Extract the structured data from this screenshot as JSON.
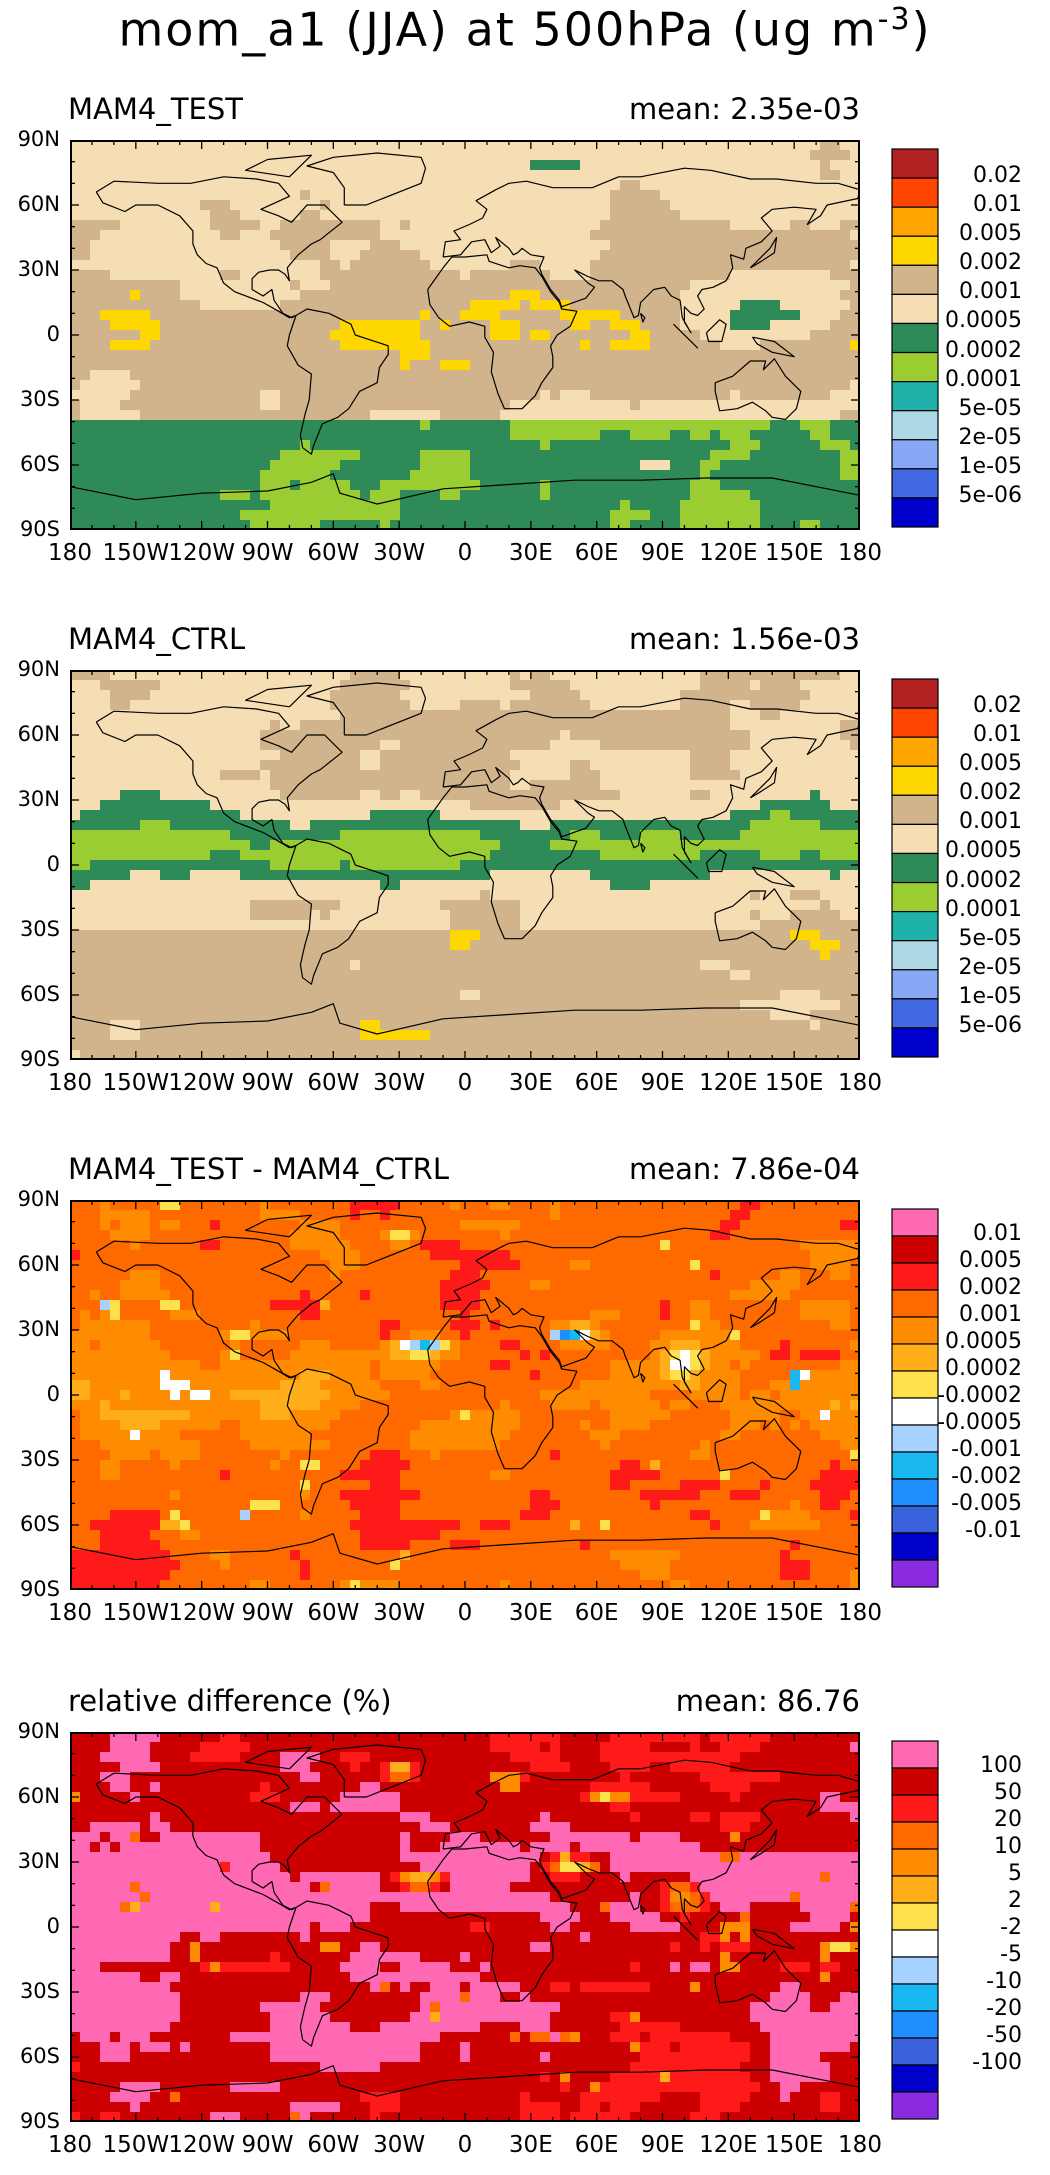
{
  "title": {
    "text": "mom_a1 (JJA) at 500hPa (ug m",
    "exponent": "-3",
    "close": ")"
  },
  "lat_labels": [
    "90N",
    "60N",
    "30N",
    "0",
    "30S",
    "60S",
    "90S"
  ],
  "lon_labels": [
    "180",
    "150W",
    "120W",
    "90W",
    "60W",
    "30W",
    "0",
    "30E",
    "60E",
    "90E",
    "120E",
    "150E",
    "180"
  ],
  "panels": [
    {
      "label": "MAM4_TEST",
      "mean": "mean: 2.35e-03",
      "kind": "abs_test",
      "colorbar": {
        "colors": [
          "#b22222",
          "#ff4500",
          "#ffa500",
          "#ffd700",
          "#d2b48c",
          "#f5deb3",
          "#2e8b57",
          "#9acd32",
          "#20b2aa",
          "#add8e6",
          "#87a9f5",
          "#4169e1",
          "#0000cd"
        ],
        "labels": [
          "0.02",
          "0.01",
          "0.005",
          "0.002",
          "0.001",
          "0.0005",
          "0.0002",
          "0.0001",
          "5e-05",
          "2e-05",
          "1e-05",
          "5e-06"
        ]
      }
    },
    {
      "label": "MAM4_CTRL",
      "mean": "mean: 1.56e-03",
      "kind": "abs_ctrl",
      "colorbar": {
        "colors": [
          "#b22222",
          "#ff4500",
          "#ffa500",
          "#ffd700",
          "#d2b48c",
          "#f5deb3",
          "#2e8b57",
          "#9acd32",
          "#20b2aa",
          "#add8e6",
          "#87a9f5",
          "#4169e1",
          "#0000cd"
        ],
        "labels": [
          "0.02",
          "0.01",
          "0.005",
          "0.002",
          "0.001",
          "0.0005",
          "0.0002",
          "0.0001",
          "5e-05",
          "2e-05",
          "1e-05",
          "5e-06"
        ]
      }
    },
    {
      "label": "MAM4_TEST - MAM4_CTRL",
      "mean": "mean: 7.86e-04",
      "kind": "diff",
      "colorbar": {
        "colors": [
          "#ff69b4",
          "#cc0000",
          "#ff1a1a",
          "#ff6a00",
          "#ff8c00",
          "#ffae1a",
          "#ffe14d",
          "#ffffff",
          "#a6d2ff",
          "#1ab8f0",
          "#1f8fff",
          "#3a62db",
          "#0000cd",
          "#8a2be2"
        ],
        "labels": [
          "0.01",
          "0.005",
          "0.002",
          "0.001",
          "0.0005",
          "0.0002",
          "-0.0002",
          "-0.0005",
          "-0.001",
          "-0.002",
          "-0.005",
          "-0.01"
        ]
      }
    },
    {
      "label": "relative difference (%)",
      "mean": "mean: 86.76",
      "kind": "rel",
      "colorbar": {
        "colors": [
          "#ff69b4",
          "#cc0000",
          "#ff1a1a",
          "#ff6a00",
          "#ff8c00",
          "#ffae1a",
          "#ffe14d",
          "#ffffff",
          "#a6d2ff",
          "#1ab8f0",
          "#1f8fff",
          "#3a62db",
          "#0000cd",
          "#8a2be2"
        ],
        "labels": [
          "100",
          "50",
          "20",
          "10",
          "5",
          "2",
          "-2",
          "-5",
          "-10",
          "-20",
          "-50",
          "-100"
        ]
      }
    }
  ]
}
